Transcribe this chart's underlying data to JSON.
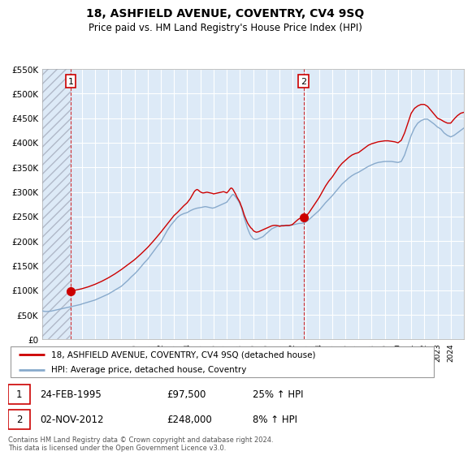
{
  "title": "18, ASHFIELD AVENUE, COVENTRY, CV4 9SQ",
  "subtitle": "Price paid vs. HM Land Registry's House Price Index (HPI)",
  "ylim": [
    0,
    550000
  ],
  "yticks": [
    0,
    50000,
    100000,
    150000,
    200000,
    250000,
    300000,
    350000,
    400000,
    450000,
    500000,
    550000
  ],
  "xlim_start": 1993.0,
  "xlim_end": 2025.0,
  "background_color": "#ffffff",
  "plot_bg_color": "#ddeaf7",
  "grid_color": "#ffffff",
  "hatch_color": "#b0b8c8",
  "red_line_color": "#cc0000",
  "blue_line_color": "#88aacc",
  "point1_x": 1995.15,
  "point1_y": 97500,
  "point2_x": 2012.84,
  "point2_y": 248000,
  "sale1_label": "24-FEB-1995",
  "sale1_price": "£97,500",
  "sale1_hpi": "25% ↑ HPI",
  "sale2_label": "02-NOV-2012",
  "sale2_price": "£248,000",
  "sale2_hpi": "8% ↑ HPI",
  "legend_line1": "18, ASHFIELD AVENUE, COVENTRY, CV4 9SQ (detached house)",
  "legend_line2": "HPI: Average price, detached house, Coventry",
  "footer": "Contains HM Land Registry data © Crown copyright and database right 2024.\nThis data is licensed under the Open Government Licence v3.0.",
  "hatch_end_year": 1995.15,
  "hpi_x": [
    1993.0,
    1993.08,
    1993.17,
    1993.25,
    1993.33,
    1993.42,
    1993.5,
    1993.58,
    1993.67,
    1993.75,
    1993.83,
    1993.92,
    1994.0,
    1994.08,
    1994.17,
    1994.25,
    1994.33,
    1994.42,
    1994.5,
    1994.58,
    1994.67,
    1994.75,
    1994.83,
    1994.92,
    1995.0,
    1995.08,
    1995.17,
    1995.25,
    1995.33,
    1995.42,
    1995.5,
    1995.58,
    1995.67,
    1995.75,
    1995.83,
    1995.92,
    1996.0,
    1996.25,
    1996.5,
    1996.75,
    1997.0,
    1997.25,
    1997.5,
    1997.75,
    1998.0,
    1998.25,
    1998.5,
    1998.75,
    1999.0,
    1999.25,
    1999.5,
    1999.75,
    2000.0,
    2000.25,
    2000.5,
    2000.75,
    2001.0,
    2001.25,
    2001.5,
    2001.75,
    2002.0,
    2002.25,
    2002.5,
    2002.75,
    2003.0,
    2003.25,
    2003.5,
    2003.75,
    2004.0,
    2004.25,
    2004.5,
    2004.75,
    2005.0,
    2005.08,
    2005.17,
    2005.25,
    2005.33,
    2005.42,
    2005.5,
    2005.58,
    2005.67,
    2005.75,
    2005.83,
    2005.92,
    2006.0,
    2006.08,
    2006.17,
    2006.25,
    2006.33,
    2006.42,
    2006.5,
    2006.58,
    2006.67,
    2006.75,
    2006.83,
    2006.92,
    2007.0,
    2007.08,
    2007.17,
    2007.25,
    2007.33,
    2007.42,
    2007.5,
    2007.58,
    2007.67,
    2007.75,
    2007.83,
    2007.92,
    2008.0,
    2008.08,
    2008.17,
    2008.25,
    2008.33,
    2008.42,
    2008.5,
    2008.58,
    2008.67,
    2008.75,
    2008.83,
    2008.92,
    2009.0,
    2009.08,
    2009.17,
    2009.25,
    2009.33,
    2009.42,
    2009.5,
    2009.58,
    2009.67,
    2009.75,
    2009.83,
    2009.92,
    2010.0,
    2010.08,
    2010.17,
    2010.25,
    2010.33,
    2010.42,
    2010.5,
    2010.58,
    2010.67,
    2010.75,
    2010.83,
    2010.92,
    2011.0,
    2011.08,
    2011.17,
    2011.25,
    2011.33,
    2011.42,
    2011.5,
    2011.58,
    2011.67,
    2011.75,
    2011.83,
    2011.92,
    2012.0,
    2012.08,
    2012.17,
    2012.25,
    2012.33,
    2012.42,
    2012.5,
    2012.58,
    2012.67,
    2012.75,
    2012.83,
    2012.92,
    2013.0,
    2013.25,
    2013.5,
    2013.75,
    2014.0,
    2014.25,
    2014.5,
    2014.75,
    2015.0,
    2015.25,
    2015.5,
    2015.75,
    2016.0,
    2016.25,
    2016.5,
    2016.75,
    2017.0,
    2017.25,
    2017.5,
    2017.75,
    2018.0,
    2018.25,
    2018.5,
    2018.75,
    2019.0,
    2019.25,
    2019.5,
    2019.75,
    2020.0,
    2020.25,
    2020.5,
    2020.75,
    2021.0,
    2021.25,
    2021.5,
    2021.75,
    2022.0,
    2022.25,
    2022.5,
    2022.75,
    2023.0,
    2023.25,
    2023.5,
    2023.75,
    2024.0,
    2024.25,
    2024.5,
    2024.75,
    2025.0
  ],
  "hpi_y": [
    58000,
    57500,
    57000,
    56800,
    56600,
    56800,
    57000,
    57200,
    57500,
    58000,
    58500,
    59000,
    59500,
    60000,
    60500,
    61000,
    61500,
    62000,
    62500,
    63000,
    63500,
    64000,
    64500,
    65000,
    65500,
    66000,
    66500,
    67000,
    67500,
    68000,
    68500,
    69000,
    69500,
    70000,
    70500,
    71000,
    72000,
    74000,
    76000,
    78000,
    80000,
    83000,
    86000,
    89000,
    92000,
    96000,
    100000,
    104000,
    108000,
    114000,
    120000,
    127000,
    133000,
    140000,
    148000,
    156000,
    163000,
    172000,
    181000,
    190000,
    198000,
    210000,
    222000,
    232000,
    240000,
    248000,
    253000,
    256000,
    258000,
    262000,
    265000,
    267000,
    268000,
    268500,
    269000,
    269500,
    270000,
    270000,
    269500,
    269000,
    268500,
    268000,
    267500,
    267000,
    267500,
    268000,
    269000,
    270000,
    271000,
    272000,
    273000,
    274000,
    275000,
    276000,
    277000,
    278000,
    279000,
    282000,
    285000,
    288000,
    291000,
    294000,
    295000,
    293000,
    290000,
    287000,
    284000,
    280000,
    276000,
    270000,
    263000,
    255000,
    247000,
    240000,
    233000,
    226000,
    220000,
    215000,
    211000,
    208000,
    205000,
    204000,
    203000,
    203500,
    204000,
    205000,
    206000,
    207000,
    208000,
    209000,
    211000,
    213000,
    215000,
    217000,
    219000,
    221000,
    223000,
    225000,
    226000,
    227000,
    228000,
    229000,
    230000,
    231000,
    231000,
    231500,
    232000,
    232000,
    232000,
    231500,
    231000,
    231000,
    231000,
    231500,
    232000,
    232500,
    233000,
    233500,
    234000,
    234500,
    235000,
    235500,
    236000,
    236000,
    236000,
    236500,
    237000,
    237500,
    239000,
    244000,
    250000,
    256000,
    262000,
    270000,
    278000,
    285000,
    292000,
    300000,
    308000,
    316000,
    322000,
    328000,
    333000,
    337000,
    340000,
    344000,
    348000,
    352000,
    355000,
    358000,
    360000,
    361000,
    362000,
    362000,
    362000,
    361000,
    360000,
    362000,
    375000,
    395000,
    415000,
    430000,
    440000,
    445000,
    448000,
    448000,
    443000,
    438000,
    432000,
    428000,
    420000,
    415000,
    412000,
    415000,
    420000,
    425000,
    430000
  ],
  "prop_x": [
    1995.15,
    1995.5,
    1996.0,
    1996.5,
    1997.0,
    1997.5,
    1998.0,
    1998.5,
    1999.0,
    1999.5,
    2000.0,
    2000.5,
    2001.0,
    2001.5,
    2002.0,
    2002.5,
    2003.0,
    2003.25,
    2003.5,
    2003.75,
    2004.0,
    2004.08,
    2004.17,
    2004.25,
    2004.33,
    2004.42,
    2004.5,
    2004.58,
    2004.67,
    2004.75,
    2004.83,
    2004.92,
    2005.0,
    2005.08,
    2005.17,
    2005.25,
    2005.33,
    2005.42,
    2005.5,
    2005.58,
    2005.67,
    2005.75,
    2005.83,
    2005.92,
    2006.0,
    2006.08,
    2006.17,
    2006.25,
    2006.33,
    2006.42,
    2006.5,
    2006.58,
    2006.67,
    2006.75,
    2006.83,
    2006.92,
    2007.0,
    2007.08,
    2007.17,
    2007.25,
    2007.33,
    2007.42,
    2007.5,
    2007.58,
    2007.67,
    2007.75,
    2007.83,
    2007.92,
    2008.0,
    2008.08,
    2008.17,
    2008.25,
    2008.33,
    2008.42,
    2008.5,
    2008.58,
    2008.67,
    2008.75,
    2008.83,
    2008.92,
    2009.0,
    2009.08,
    2009.17,
    2009.25,
    2009.33,
    2009.42,
    2009.5,
    2009.58,
    2009.67,
    2009.75,
    2009.83,
    2009.92,
    2010.0,
    2010.08,
    2010.17,
    2010.25,
    2010.33,
    2010.42,
    2010.5,
    2010.58,
    2010.67,
    2010.75,
    2010.83,
    2010.92,
    2011.0,
    2011.08,
    2011.17,
    2011.25,
    2011.33,
    2011.42,
    2011.5,
    2011.58,
    2011.67,
    2011.75,
    2011.83,
    2011.92,
    2012.0,
    2012.08,
    2012.17,
    2012.25,
    2012.33,
    2012.42,
    2012.5,
    2012.58,
    2012.67,
    2012.75,
    2012.84,
    2013.0,
    2013.25,
    2013.5,
    2013.75,
    2014.0,
    2014.25,
    2014.5,
    2014.75,
    2015.0,
    2015.25,
    2015.5,
    2015.75,
    2016.0,
    2016.25,
    2016.5,
    2016.75,
    2017.0,
    2017.25,
    2017.5,
    2017.75,
    2018.0,
    2018.25,
    2018.5,
    2018.75,
    2019.0,
    2019.25,
    2019.5,
    2019.75,
    2020.0,
    2020.25,
    2020.5,
    2020.75,
    2021.0,
    2021.25,
    2021.5,
    2021.75,
    2022.0,
    2022.25,
    2022.5,
    2022.75,
    2023.0,
    2023.25,
    2023.5,
    2023.75,
    2024.0,
    2024.25,
    2024.5,
    2024.75,
    2025.0
  ],
  "prop_y": [
    97500,
    100000,
    103000,
    107000,
    112000,
    118000,
    125000,
    133000,
    142000,
    152000,
    162000,
    174000,
    187000,
    202000,
    218000,
    235000,
    252000,
    258000,
    265000,
    272000,
    278000,
    281000,
    284000,
    287000,
    291000,
    295000,
    299000,
    302000,
    304000,
    305000,
    304000,
    302000,
    300000,
    299000,
    298000,
    298000,
    298500,
    299000,
    299500,
    299000,
    298500,
    298000,
    297500,
    297000,
    296000,
    296500,
    297000,
    297500,
    298000,
    298500,
    299000,
    299500,
    300000,
    300500,
    300000,
    299000,
    298000,
    300000,
    303000,
    306000,
    308000,
    307000,
    304000,
    300000,
    296000,
    291000,
    287000,
    283000,
    279000,
    273000,
    267000,
    260000,
    253000,
    247000,
    242000,
    237000,
    233000,
    230000,
    227000,
    225000,
    222000,
    220000,
    219000,
    218000,
    218500,
    219000,
    220000,
    221000,
    222000,
    223000,
    224000,
    225000,
    226000,
    227000,
    228000,
    229000,
    230000,
    231000,
    231500,
    232000,
    232000,
    232000,
    231500,
    231000,
    230000,
    230500,
    231000,
    231000,
    231000,
    231500,
    232000,
    232000,
    232000,
    232000,
    232500,
    233000,
    234000,
    236000,
    238000,
    240000,
    242000,
    244000,
    245500,
    246500,
    247500,
    248500,
    248000,
    250000,
    258000,
    268000,
    278000,
    288000,
    300000,
    312000,
    322000,
    330000,
    340000,
    350000,
    358000,
    364000,
    370000,
    375000,
    378000,
    380000,
    385000,
    390000,
    395000,
    398000,
    400000,
    402000,
    403000,
    404000,
    404000,
    403000,
    402000,
    400000,
    405000,
    420000,
    440000,
    460000,
    470000,
    475000,
    478000,
    478000,
    474000,
    466000,
    458000,
    450000,
    447000,
    443000,
    440000,
    440000,
    448000,
    455000,
    460000,
    462000
  ]
}
